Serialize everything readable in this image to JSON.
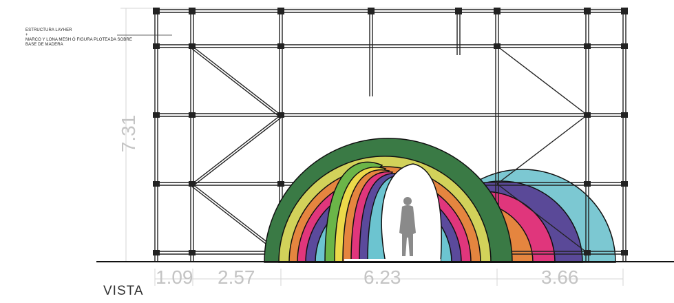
{
  "notes": {
    "line1": "ESTRUCTURA LAYHER",
    "line2": "+",
    "line3": "MARCO Y LONA MESH Ó FIGURA PLOTEADA SOBRE",
    "line4": "BASE DE MADERA"
  },
  "view_label": "VISTA",
  "dimensions": {
    "height": "7.31",
    "widths": [
      "1.09",
      "2.57",
      "6.23",
      "3.66"
    ]
  },
  "colors": {
    "dark_green": "#3a7a45",
    "yellow_green": "#d2d25a",
    "orange": "#e5853f",
    "pink": "#e0367c",
    "purple": "#5b4a9c",
    "cyan": "#6cc4d0",
    "green": "#6bb548",
    "yellow": "#ecd94a"
  }
}
